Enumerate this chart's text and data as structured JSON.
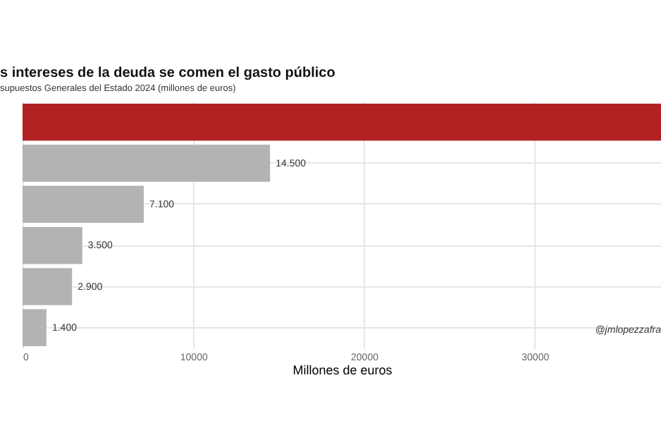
{
  "chart_data": {
    "type": "bar",
    "orientation": "horizontal",
    "title": "s intereses de la deuda se comen el gasto público",
    "subtitle": "supuestos Generales del Estado 2024 (millones de euros)",
    "xlabel": "Millones de euros",
    "categories": [
      null,
      null,
      null,
      null,
      null,
      null
    ],
    "values": [
      37400,
      14500,
      7100,
      3500,
      2900,
      1400
    ],
    "colors": [
      "#b22222",
      "#b3b3b3",
      "#b3b3b3",
      "#b3b3b3",
      "#b3b3b3",
      "#b3b3b3"
    ],
    "value_labels": [
      null,
      "14.500",
      "7.100",
      "3.500",
      "2.900",
      "1.400"
    ],
    "xlim": [
      0,
      37400
    ],
    "xticks": [
      0,
      10000,
      20000,
      30000
    ],
    "grid": true,
    "annotations": [
      "@jmlopezzafra"
    ]
  }
}
